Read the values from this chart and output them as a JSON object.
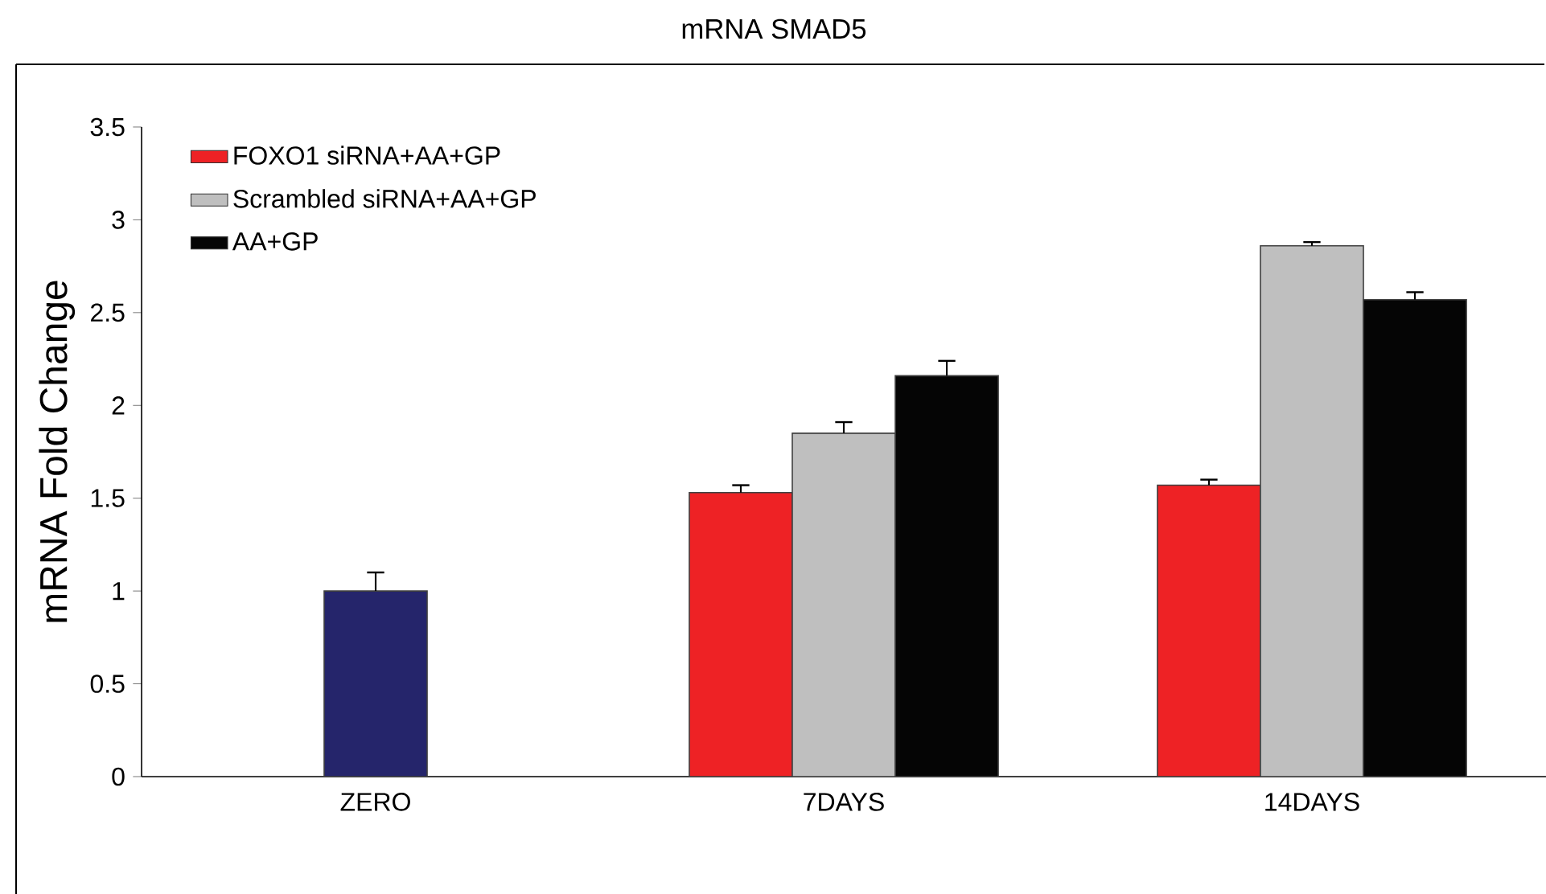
{
  "chart_data": {
    "type": "bar",
    "title": "mRNA SMAD5",
    "ylabel": "mRNA Fold Change",
    "categories": [
      "ZERO",
      "7DAYS",
      "14DAYS"
    ],
    "series": [
      {
        "color": "#25256b",
        "values": [
          1.0,
          null,
          null
        ],
        "errors": [
          [
            1.0,
            1.1
          ],
          null,
          null
        ]
      },
      {
        "name": "FOXO1 siRNA+AA+GP",
        "color": "#ee2225",
        "values": [
          null,
          1.53,
          1.57
        ],
        "errors": [
          null,
          [
            1.53,
            1.57
          ],
          [
            1.57,
            1.6
          ]
        ]
      },
      {
        "name": "Scrambled siRNA+AA+GP",
        "color": "#bfbfbf",
        "values": [
          null,
          1.85,
          2.86
        ],
        "errors": [
          null,
          [
            1.85,
            1.91
          ],
          [
            2.86,
            2.88
          ]
        ]
      },
      {
        "name": "AA+GP",
        "color": "#050505",
        "values": [
          null,
          2.16,
          2.57
        ],
        "errors": [
          null,
          [
            2.16,
            2.24
          ],
          [
            2.57,
            2.61
          ]
        ]
      }
    ],
    "ylim": [
      0,
      3.5
    ],
    "yticks": [
      0,
      0.5,
      1,
      1.5,
      2,
      2.5,
      3,
      3.5
    ],
    "grid": false,
    "legend": "top left"
  }
}
